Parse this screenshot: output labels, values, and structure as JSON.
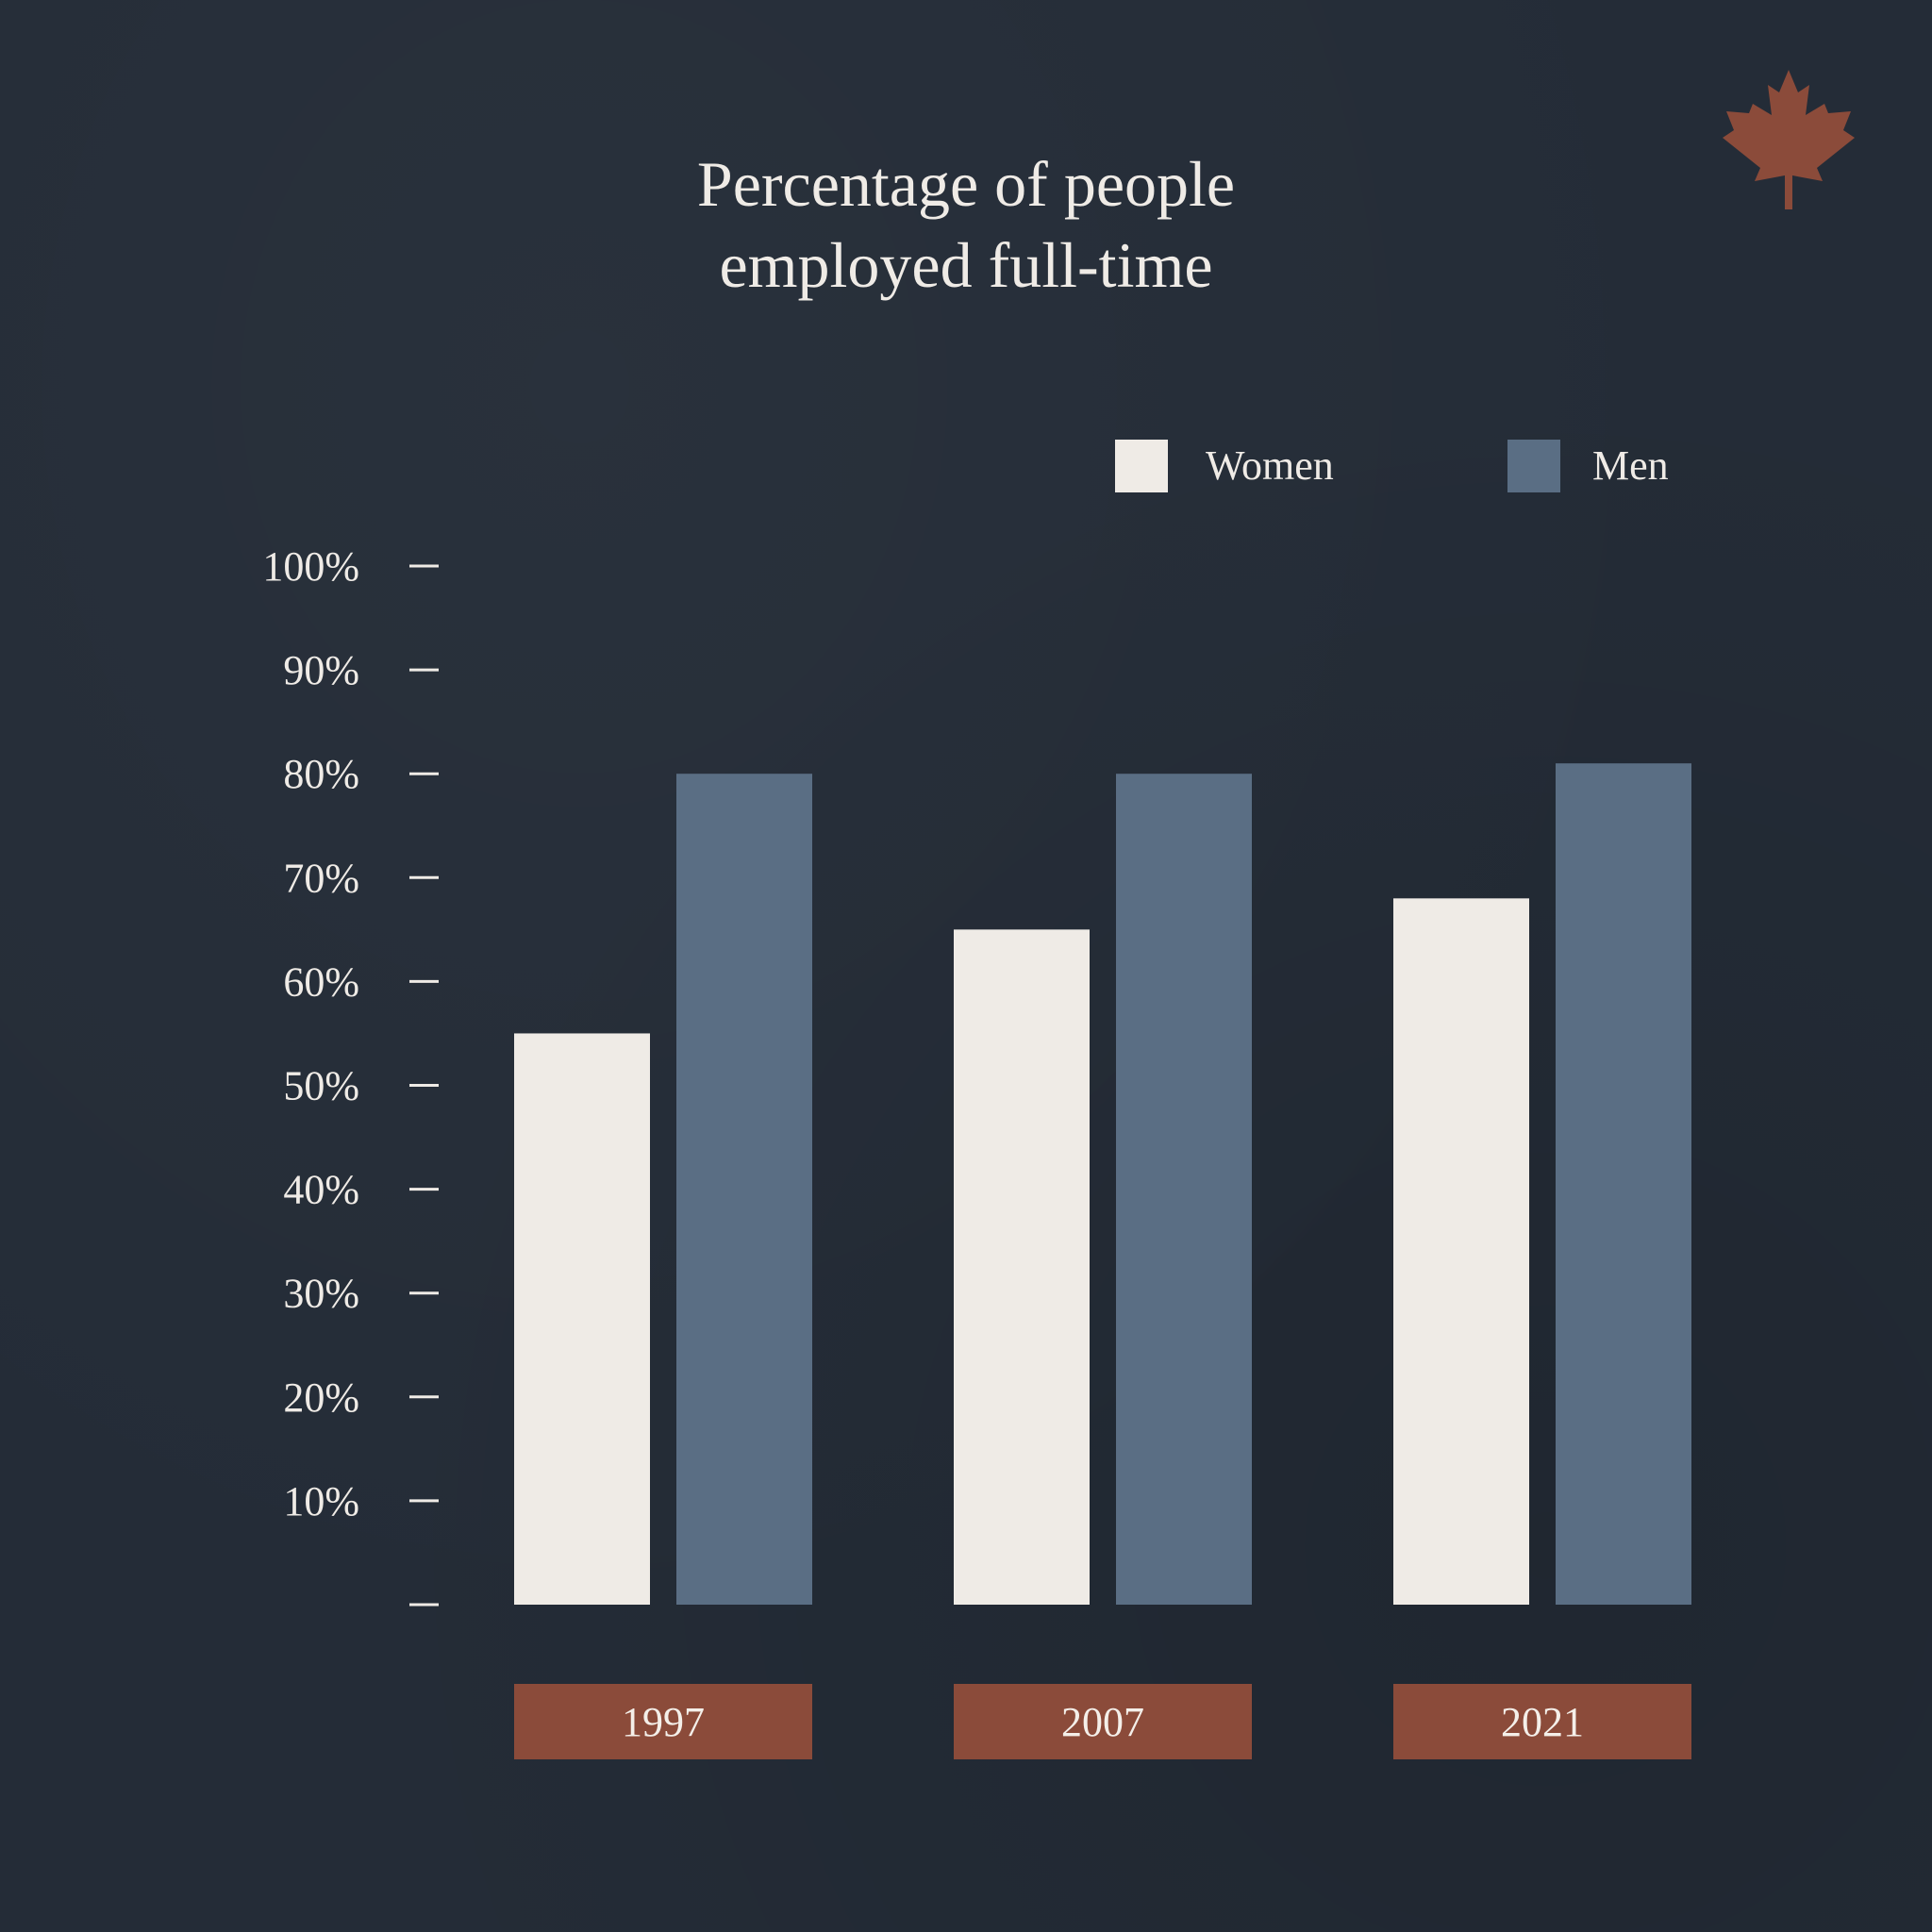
{
  "title": {
    "line1": "Percentage of people",
    "line2": "employed full-time"
  },
  "logo": {
    "icon": "maple-leaf-icon",
    "color": "#8b4b3a"
  },
  "colors": {
    "background": "#242c37",
    "text": "#efebe6",
    "women": "#efebe6",
    "men": "#5a6e84",
    "category_box": "#8b4b3a"
  },
  "legend": {
    "items": [
      {
        "label": "Women",
        "color": "#efebe6"
      },
      {
        "label": "Men",
        "color": "#5a6e84"
      }
    ]
  },
  "chart_data": {
    "type": "bar",
    "title": "Percentage of people employed full-time",
    "categories": [
      "1997",
      "2007",
      "2021"
    ],
    "series": [
      {
        "name": "Women",
        "values": [
          55,
          65,
          68
        ]
      },
      {
        "name": "Men",
        "values": [
          80,
          80,
          81
        ]
      }
    ],
    "ylim": [
      0,
      100
    ],
    "yticks": [
      0,
      10,
      20,
      30,
      40,
      50,
      60,
      70,
      80,
      90,
      100
    ],
    "ytick_labels": [
      "",
      "10%",
      "20%",
      "30%",
      "40%",
      "50%",
      "60%",
      "70%",
      "80%",
      "90%",
      "100%"
    ],
    "xlabel": "",
    "ylabel": "",
    "grid": false,
    "legend_position": "top-right"
  }
}
